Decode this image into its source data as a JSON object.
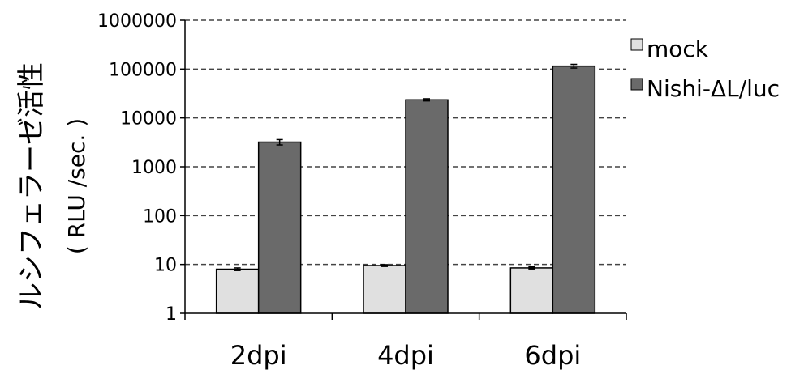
{
  "chart_data": {
    "type": "bar",
    "title": "",
    "xlabel": "",
    "ylabel": "ルシフェラーゼ活性",
    "ylabel_unit": "( RLU /sec. )",
    "yscale": "log",
    "ylim": [
      1,
      1000000
    ],
    "yticks": [
      "1",
      "10",
      "100",
      "1000",
      "10000",
      "100000",
      "1000000"
    ],
    "grid": "horizontal dashed",
    "legend_position": "top-right",
    "categories": [
      "2dpi",
      "4dpi",
      "6dpi"
    ],
    "series": [
      {
        "name": "mock",
        "color": "#e0e0e0",
        "values": [
          8,
          9.5,
          8.5
        ],
        "errors": [
          0.5,
          0.4,
          0.4
        ]
      },
      {
        "name": "Nishi-ΔL/luc",
        "color": "#6a6a6a",
        "values": [
          3200,
          23500,
          115000
        ],
        "errors": [
          400,
          1200,
          10000
        ]
      }
    ]
  }
}
